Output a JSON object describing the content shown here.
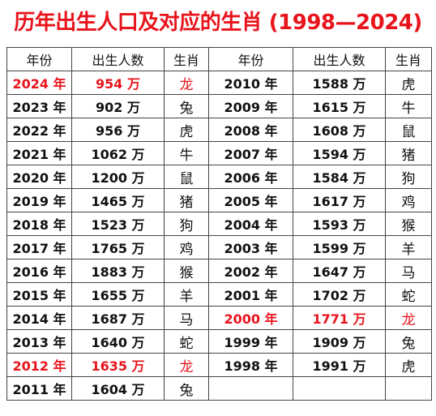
{
  "title": "历年出生人口及对应的生肖 (1998—2024)",
  "headers": [
    "年份",
    "出生人数",
    "生肖",
    "年份",
    "出生人数",
    "生肖"
  ],
  "left_rows": [
    {
      "year": "2024 年",
      "births": "954 万",
      "zodiac": "龙",
      "highlight": true
    },
    {
      "year": "2023 年",
      "births": "902 万",
      "zodiac": "兔",
      "highlight": false
    },
    {
      "year": "2022 年",
      "births": "956 万",
      "zodiac": "虎",
      "highlight": false
    },
    {
      "year": "2021 年",
      "births": "1062 万",
      "zodiac": "牛",
      "highlight": false
    },
    {
      "year": "2020 年",
      "births": "1200 万",
      "zodiac": "鼠",
      "highlight": false
    },
    {
      "year": "2019 年",
      "births": "1465 万",
      "zodiac": "猪",
      "highlight": false
    },
    {
      "year": "2018 年",
      "births": "1523 万",
      "zodiac": "狗",
      "highlight": false
    },
    {
      "year": "2017 年",
      "births": "1765 万",
      "zodiac": "鸡",
      "highlight": false
    },
    {
      "year": "2016 年",
      "births": "1883 万",
      "zodiac": "猴",
      "highlight": false
    },
    {
      "year": "2015 年",
      "births": "1655 万",
      "zodiac": "羊",
      "highlight": false
    },
    {
      "year": "2014 年",
      "births": "1687 万",
      "zodiac": "马",
      "highlight": false
    },
    {
      "year": "2013 年",
      "births": "1640 万",
      "zodiac": "蛇",
      "highlight": false
    },
    {
      "year": "2012 年",
      "births": "1635 万",
      "zodiac": "龙",
      "highlight": true
    },
    {
      "year": "2011 年",
      "births": "1604 万",
      "zodiac": "兔",
      "highlight": false
    }
  ],
  "right_rows": [
    {
      "year": "2010 年",
      "births": "1588 万",
      "zodiac": "虎",
      "highlight": false
    },
    {
      "year": "2009 年",
      "births": "1615 万",
      "zodiac": "牛",
      "highlight": false
    },
    {
      "year": "2008 年",
      "births": "1608 万",
      "zodiac": "鼠",
      "highlight": false
    },
    {
      "year": "2007 年",
      "births": "1594 万",
      "zodiac": "猪",
      "highlight": false
    },
    {
      "year": "2006 年",
      "births": "1584 万",
      "zodiac": "狗",
      "highlight": false
    },
    {
      "year": "2005 年",
      "births": "1617 万",
      "zodiac": "鸡",
      "highlight": false
    },
    {
      "year": "2004 年",
      "births": "1593 万",
      "zodiac": "猴",
      "highlight": false
    },
    {
      "year": "2003 年",
      "births": "1599 万",
      "zodiac": "羊",
      "highlight": false
    },
    {
      "year": "2002 年",
      "births": "1647 万",
      "zodiac": "马",
      "highlight": false
    },
    {
      "year": "2001 年",
      "births": "1702 万",
      "zodiac": "蛇",
      "highlight": false
    },
    {
      "year": "2000 年",
      "births": "1771 万",
      "zodiac": "龙",
      "highlight": true
    },
    {
      "year": "1999 年",
      "births": "1909 万",
      "zodiac": "兔",
      "highlight": false
    },
    {
      "year": "1998 年",
      "births": "1991 万",
      "zodiac": "虎",
      "highlight": false
    }
  ],
  "colors": {
    "highlight": "#e8141c",
    "title": "#e8141c"
  }
}
